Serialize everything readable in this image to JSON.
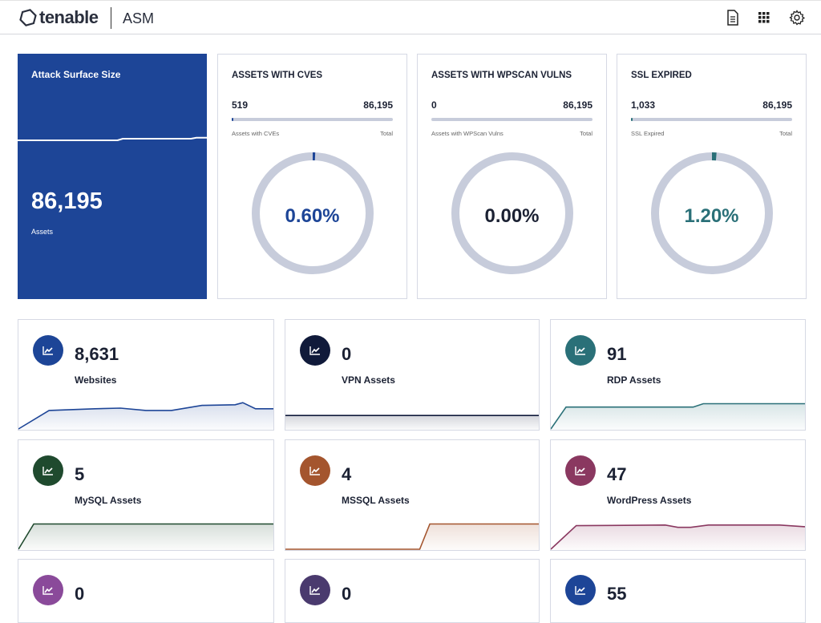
{
  "header": {
    "brand": "tenable",
    "product": "ASM",
    "icons": [
      "document-icon",
      "grid-icon",
      "gear-icon"
    ]
  },
  "attack_surface": {
    "title": "Attack Surface Size",
    "value": "86,195",
    "label": "Assets",
    "color": "#1d4597",
    "trend": [
      40,
      40,
      40,
      40,
      40,
      40,
      40,
      40,
      40,
      40,
      40,
      40,
      40,
      40,
      40,
      40,
      40,
      40,
      40,
      40,
      45,
      45,
      45,
      45,
      45,
      45,
      45,
      45,
      45,
      45,
      45,
      45,
      45,
      45,
      48,
      48,
      48
    ]
  },
  "metrics": [
    {
      "title": "ASSETS WITH CVES",
      "count": "519",
      "total": "86,195",
      "count_label": "Assets with CVEs",
      "total_label": "Total",
      "percent": "0.60%",
      "fraction": 0.006,
      "color": "#1d4597"
    },
    {
      "title": "ASSETS WITH WPSCAN VULNS",
      "count": "0",
      "total": "86,195",
      "count_label": "Assets with WPScan Vulns",
      "total_label": "Total",
      "percent": "0.00%",
      "fraction": 0,
      "color": "#1b2133"
    },
    {
      "title": "SSL EXPIRED",
      "count": "1,033",
      "total": "86,195",
      "count_label": "SSL Expired",
      "total_label": "Total",
      "percent": "1.20%",
      "fraction": 0.012,
      "color": "#2a7078"
    }
  ],
  "assets": [
    {
      "count": "8,631",
      "name": "Websites",
      "color": "#1d4597",
      "trend": [
        [
          0,
          0
        ],
        [
          0.12,
          55
        ],
        [
          0.3,
          60
        ],
        [
          0.4,
          62
        ],
        [
          0.5,
          55
        ],
        [
          0.6,
          55
        ],
        [
          0.72,
          70
        ],
        [
          0.85,
          72
        ],
        [
          0.88,
          78
        ],
        [
          0.93,
          60
        ],
        [
          1,
          60
        ]
      ]
    },
    {
      "count": "0",
      "name": "VPN Assets",
      "color": "#101a3a",
      "trend": [
        [
          0,
          40
        ],
        [
          1,
          40
        ]
      ]
    },
    {
      "count": "91",
      "name": "RDP Assets",
      "color": "#2a7078",
      "trend": [
        [
          0,
          0
        ],
        [
          0.06,
          65
        ],
        [
          0.56,
          65
        ],
        [
          0.6,
          75
        ],
        [
          1,
          75
        ]
      ]
    },
    {
      "count": "5",
      "name": "MySQL Assets",
      "color": "#1f4a2e",
      "trend": [
        [
          0,
          0
        ],
        [
          0.06,
          75
        ],
        [
          1,
          75
        ]
      ]
    },
    {
      "count": "4",
      "name": "MSSQL Assets",
      "color": "#a4552e",
      "trend": [
        [
          0,
          0
        ],
        [
          0.53,
          0
        ],
        [
          0.57,
          75
        ],
        [
          1,
          75
        ]
      ]
    },
    {
      "count": "47",
      "name": "WordPress Assets",
      "color": "#8a3860",
      "trend": [
        [
          0,
          0
        ],
        [
          0.1,
          70
        ],
        [
          0.45,
          72
        ],
        [
          0.5,
          65
        ],
        [
          0.55,
          65
        ],
        [
          0.62,
          72
        ],
        [
          0.9,
          72
        ],
        [
          1,
          67
        ]
      ]
    },
    {
      "count": "0",
      "name": "",
      "color": "#8a4a9a",
      "trend": []
    },
    {
      "count": "0",
      "name": "",
      "color": "#4a3a6e",
      "trend": []
    },
    {
      "count": "55",
      "name": "",
      "color": "#1d4597",
      "trend": []
    }
  ]
}
